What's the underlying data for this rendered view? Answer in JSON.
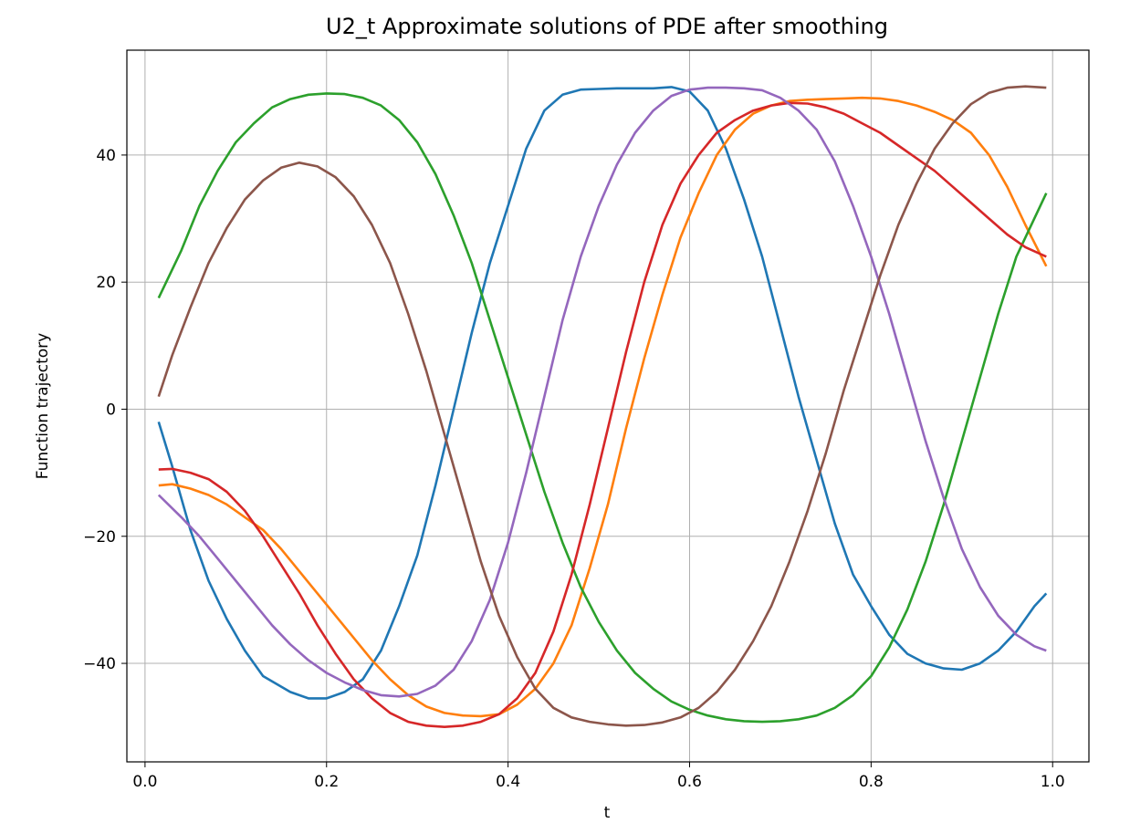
{
  "chart_data": {
    "type": "line",
    "title": "U2_t Approximate solutions of PDE after smoothing",
    "xlabel": "t",
    "ylabel": "Function trajectory",
    "xlim": [
      -0.02,
      1.04
    ],
    "ylim": [
      -55.5,
      56.5
    ],
    "xticks": [
      0.0,
      0.2,
      0.4,
      0.6,
      0.8,
      1.0
    ],
    "xtick_labels": [
      "0.0",
      "0.2",
      "0.4",
      "0.6",
      "0.8",
      "1.0"
    ],
    "yticks": [
      -40,
      -20,
      0,
      20,
      40
    ],
    "ytick_labels": [
      "−40",
      "−20",
      "0",
      "20",
      "40"
    ],
    "grid": true,
    "legend": "none",
    "series": [
      {
        "color": "#1f77b4",
        "points": [
          [
            0.015,
            -2
          ],
          [
            0.03,
            -9
          ],
          [
            0.05,
            -19
          ],
          [
            0.07,
            -27
          ],
          [
            0.09,
            -33
          ],
          [
            0.11,
            -38
          ],
          [
            0.13,
            -42
          ],
          [
            0.16,
            -44.5
          ],
          [
            0.18,
            -45.5
          ],
          [
            0.2,
            -45.5
          ],
          [
            0.22,
            -44.5
          ],
          [
            0.24,
            -42.5
          ],
          [
            0.26,
            -38
          ],
          [
            0.28,
            -31
          ],
          [
            0.3,
            -23
          ],
          [
            0.32,
            -12
          ],
          [
            0.34,
            0
          ],
          [
            0.36,
            12
          ],
          [
            0.38,
            23
          ],
          [
            0.4,
            32
          ],
          [
            0.42,
            41
          ],
          [
            0.44,
            47
          ],
          [
            0.46,
            49.5
          ],
          [
            0.48,
            50.3
          ],
          [
            0.5,
            50.4
          ],
          [
            0.52,
            50.5
          ],
          [
            0.54,
            50.5
          ],
          [
            0.56,
            50.5
          ],
          [
            0.58,
            50.7
          ],
          [
            0.6,
            50
          ],
          [
            0.62,
            47
          ],
          [
            0.64,
            41
          ],
          [
            0.66,
            33
          ],
          [
            0.68,
            24
          ],
          [
            0.7,
            13
          ],
          [
            0.72,
            2
          ],
          [
            0.74,
            -8
          ],
          [
            0.76,
            -18
          ],
          [
            0.78,
            -26
          ],
          [
            0.8,
            -31
          ],
          [
            0.82,
            -35.5
          ],
          [
            0.84,
            -38.5
          ],
          [
            0.86,
            -40
          ],
          [
            0.88,
            -40.8
          ],
          [
            0.9,
            -41
          ],
          [
            0.92,
            -40
          ],
          [
            0.94,
            -38
          ],
          [
            0.96,
            -35
          ],
          [
            0.98,
            -31
          ],
          [
            0.993,
            -29
          ]
        ]
      },
      {
        "color": "#ff7f0e",
        "points": [
          [
            0.015,
            -12
          ],
          [
            0.03,
            -11.8
          ],
          [
            0.05,
            -12.5
          ],
          [
            0.07,
            -13.5
          ],
          [
            0.09,
            -15
          ],
          [
            0.11,
            -17
          ],
          [
            0.13,
            -19
          ],
          [
            0.15,
            -22
          ],
          [
            0.17,
            -25.5
          ],
          [
            0.19,
            -29
          ],
          [
            0.21,
            -32.5
          ],
          [
            0.23,
            -36
          ],
          [
            0.25,
            -39.5
          ],
          [
            0.27,
            -42.5
          ],
          [
            0.29,
            -45
          ],
          [
            0.31,
            -46.8
          ],
          [
            0.33,
            -47.8
          ],
          [
            0.35,
            -48.2
          ],
          [
            0.37,
            -48.3
          ],
          [
            0.39,
            -48
          ],
          [
            0.41,
            -46.5
          ],
          [
            0.43,
            -44
          ],
          [
            0.45,
            -40
          ],
          [
            0.47,
            -34
          ],
          [
            0.49,
            -25
          ],
          [
            0.51,
            -15
          ],
          [
            0.53,
            -3
          ],
          [
            0.55,
            8
          ],
          [
            0.57,
            18
          ],
          [
            0.59,
            27
          ],
          [
            0.61,
            34
          ],
          [
            0.63,
            40
          ],
          [
            0.65,
            44
          ],
          [
            0.67,
            46.5
          ],
          [
            0.69,
            47.8
          ],
          [
            0.71,
            48.5
          ],
          [
            0.73,
            48.7
          ],
          [
            0.75,
            48.8
          ],
          [
            0.77,
            48.9
          ],
          [
            0.79,
            49
          ],
          [
            0.81,
            48.9
          ],
          [
            0.83,
            48.5
          ],
          [
            0.85,
            47.8
          ],
          [
            0.87,
            46.8
          ],
          [
            0.89,
            45.5
          ],
          [
            0.91,
            43.5
          ],
          [
            0.93,
            40
          ],
          [
            0.95,
            35
          ],
          [
            0.97,
            29
          ],
          [
            0.993,
            22.5
          ]
        ]
      },
      {
        "color": "#2ca02c",
        "points": [
          [
            0.015,
            17.5
          ],
          [
            0.04,
            25
          ],
          [
            0.06,
            32
          ],
          [
            0.08,
            37.5
          ],
          [
            0.1,
            42
          ],
          [
            0.12,
            45
          ],
          [
            0.14,
            47.5
          ],
          [
            0.16,
            48.8
          ],
          [
            0.18,
            49.5
          ],
          [
            0.2,
            49.7
          ],
          [
            0.22,
            49.6
          ],
          [
            0.24,
            49
          ],
          [
            0.26,
            47.8
          ],
          [
            0.28,
            45.5
          ],
          [
            0.3,
            42
          ],
          [
            0.32,
            37
          ],
          [
            0.34,
            30.5
          ],
          [
            0.36,
            23
          ],
          [
            0.38,
            14
          ],
          [
            0.4,
            5
          ],
          [
            0.42,
            -4
          ],
          [
            0.44,
            -13
          ],
          [
            0.46,
            -21
          ],
          [
            0.48,
            -28
          ],
          [
            0.5,
            -33.5
          ],
          [
            0.52,
            -38
          ],
          [
            0.54,
            -41.5
          ],
          [
            0.56,
            -44
          ],
          [
            0.58,
            -46
          ],
          [
            0.6,
            -47.3
          ],
          [
            0.62,
            -48.2
          ],
          [
            0.64,
            -48.8
          ],
          [
            0.66,
            -49.1
          ],
          [
            0.68,
            -49.2
          ],
          [
            0.7,
            -49.1
          ],
          [
            0.72,
            -48.8
          ],
          [
            0.74,
            -48.2
          ],
          [
            0.76,
            -47
          ],
          [
            0.78,
            -45
          ],
          [
            0.8,
            -42
          ],
          [
            0.82,
            -37.5
          ],
          [
            0.84,
            -31.5
          ],
          [
            0.86,
            -24
          ],
          [
            0.88,
            -15
          ],
          [
            0.9,
            -5
          ],
          [
            0.92,
            5
          ],
          [
            0.94,
            15
          ],
          [
            0.96,
            24
          ],
          [
            0.993,
            34
          ]
        ]
      },
      {
        "color": "#d62728",
        "points": [
          [
            0.015,
            -9.5
          ],
          [
            0.03,
            -9.4
          ],
          [
            0.05,
            -10
          ],
          [
            0.07,
            -11
          ],
          [
            0.09,
            -13
          ],
          [
            0.11,
            -16
          ],
          [
            0.13,
            -20
          ],
          [
            0.15,
            -24.5
          ],
          [
            0.17,
            -29
          ],
          [
            0.19,
            -34
          ],
          [
            0.21,
            -38.5
          ],
          [
            0.23,
            -42.5
          ],
          [
            0.25,
            -45.5
          ],
          [
            0.27,
            -47.8
          ],
          [
            0.29,
            -49.2
          ],
          [
            0.31,
            -49.8
          ],
          [
            0.33,
            -50
          ],
          [
            0.35,
            -49.8
          ],
          [
            0.37,
            -49.2
          ],
          [
            0.39,
            -48
          ],
          [
            0.41,
            -45.5
          ],
          [
            0.43,
            -41.5
          ],
          [
            0.45,
            -35
          ],
          [
            0.47,
            -26
          ],
          [
            0.49,
            -15
          ],
          [
            0.51,
            -3
          ],
          [
            0.53,
            9
          ],
          [
            0.55,
            20
          ],
          [
            0.57,
            29
          ],
          [
            0.59,
            35.5
          ],
          [
            0.61,
            40
          ],
          [
            0.63,
            43.5
          ],
          [
            0.65,
            45.5
          ],
          [
            0.67,
            47
          ],
          [
            0.69,
            47.8
          ],
          [
            0.71,
            48.2
          ],
          [
            0.73,
            48.1
          ],
          [
            0.75,
            47.5
          ],
          [
            0.77,
            46.5
          ],
          [
            0.79,
            45
          ],
          [
            0.81,
            43.5
          ],
          [
            0.83,
            41.5
          ],
          [
            0.85,
            39.5
          ],
          [
            0.87,
            37.5
          ],
          [
            0.89,
            35
          ],
          [
            0.91,
            32.5
          ],
          [
            0.93,
            30
          ],
          [
            0.95,
            27.5
          ],
          [
            0.97,
            25.5
          ],
          [
            0.993,
            24
          ]
        ]
      },
      {
        "color": "#9467bd",
        "points": [
          [
            0.015,
            -13.5
          ],
          [
            0.04,
            -17
          ],
          [
            0.06,
            -20
          ],
          [
            0.08,
            -23.5
          ],
          [
            0.1,
            -27
          ],
          [
            0.12,
            -30.5
          ],
          [
            0.14,
            -34
          ],
          [
            0.16,
            -37
          ],
          [
            0.18,
            -39.5
          ],
          [
            0.2,
            -41.5
          ],
          [
            0.22,
            -43
          ],
          [
            0.24,
            -44.2
          ],
          [
            0.26,
            -45
          ],
          [
            0.28,
            -45.2
          ],
          [
            0.3,
            -44.8
          ],
          [
            0.32,
            -43.5
          ],
          [
            0.34,
            -41
          ],
          [
            0.36,
            -36.5
          ],
          [
            0.38,
            -30
          ],
          [
            0.4,
            -21
          ],
          [
            0.42,
            -10
          ],
          [
            0.44,
            2
          ],
          [
            0.46,
            14
          ],
          [
            0.48,
            24
          ],
          [
            0.5,
            32
          ],
          [
            0.52,
            38.5
          ],
          [
            0.54,
            43.5
          ],
          [
            0.56,
            47
          ],
          [
            0.58,
            49.3
          ],
          [
            0.6,
            50.3
          ],
          [
            0.62,
            50.6
          ],
          [
            0.64,
            50.6
          ],
          [
            0.66,
            50.5
          ],
          [
            0.68,
            50.2
          ],
          [
            0.7,
            49
          ],
          [
            0.72,
            47
          ],
          [
            0.74,
            44
          ],
          [
            0.76,
            39
          ],
          [
            0.78,
            32
          ],
          [
            0.8,
            24
          ],
          [
            0.82,
            15
          ],
          [
            0.84,
            5
          ],
          [
            0.86,
            -5
          ],
          [
            0.88,
            -14
          ],
          [
            0.9,
            -22
          ],
          [
            0.92,
            -28
          ],
          [
            0.94,
            -32.5
          ],
          [
            0.96,
            -35.5
          ],
          [
            0.98,
            -37.3
          ],
          [
            0.993,
            -38
          ]
        ]
      },
      {
        "color": "#8c564b",
        "points": [
          [
            0.015,
            2
          ],
          [
            0.03,
            8.5
          ],
          [
            0.05,
            16
          ],
          [
            0.07,
            23
          ],
          [
            0.09,
            28.5
          ],
          [
            0.11,
            33
          ],
          [
            0.13,
            36
          ],
          [
            0.15,
            38
          ],
          [
            0.17,
            38.8
          ],
          [
            0.19,
            38.2
          ],
          [
            0.21,
            36.5
          ],
          [
            0.23,
            33.5
          ],
          [
            0.25,
            29
          ],
          [
            0.27,
            23
          ],
          [
            0.29,
            15
          ],
          [
            0.31,
            6
          ],
          [
            0.33,
            -4
          ],
          [
            0.35,
            -14
          ],
          [
            0.37,
            -24
          ],
          [
            0.39,
            -32.5
          ],
          [
            0.41,
            -39
          ],
          [
            0.43,
            -44
          ],
          [
            0.45,
            -47
          ],
          [
            0.47,
            -48.5
          ],
          [
            0.49,
            -49.2
          ],
          [
            0.51,
            -49.6
          ],
          [
            0.53,
            -49.8
          ],
          [
            0.55,
            -49.7
          ],
          [
            0.57,
            -49.3
          ],
          [
            0.59,
            -48.5
          ],
          [
            0.61,
            -47
          ],
          [
            0.63,
            -44.5
          ],
          [
            0.65,
            -41
          ],
          [
            0.67,
            -36.5
          ],
          [
            0.69,
            -31
          ],
          [
            0.71,
            -24
          ],
          [
            0.73,
            -16
          ],
          [
            0.75,
            -7
          ],
          [
            0.77,
            3
          ],
          [
            0.79,
            12
          ],
          [
            0.81,
            21
          ],
          [
            0.83,
            29
          ],
          [
            0.85,
            35.5
          ],
          [
            0.87,
            41
          ],
          [
            0.89,
            45
          ],
          [
            0.91,
            48
          ],
          [
            0.93,
            49.8
          ],
          [
            0.95,
            50.6
          ],
          [
            0.97,
            50.8
          ],
          [
            0.993,
            50.6
          ]
        ]
      }
    ]
  }
}
